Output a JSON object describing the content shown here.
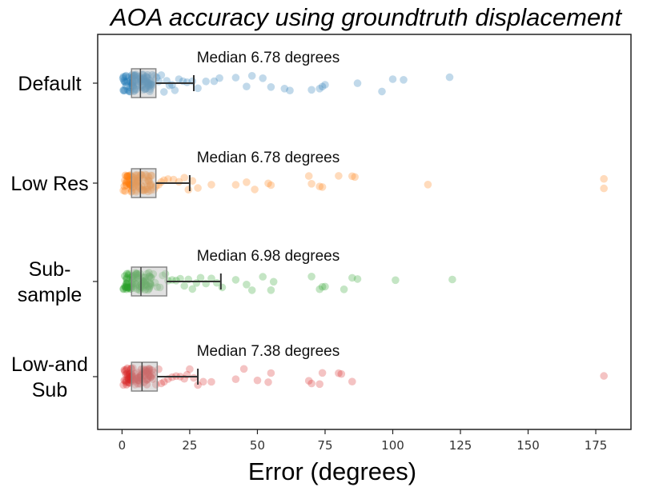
{
  "chart_data": {
    "type": "strip-box",
    "orientation": "horizontal",
    "title": "AOA accuracy using groundtruth displacement",
    "xlabel": "Error (degrees)",
    "xlim": [
      -9,
      188
    ],
    "xticks": [
      0,
      25,
      50,
      75,
      100,
      125,
      150,
      175
    ],
    "grid": false,
    "categories": [
      {
        "label_lines": [
          "Default"
        ],
        "color": "#1f77b4",
        "annotation": "Median 6.78 degrees",
        "box": {
          "q1": 3.5,
          "median": 6.78,
          "q3": 12.5,
          "whisker_low": 0,
          "whisker_high": 26.5
        },
        "points": [
          0.5,
          1,
          1.5,
          2,
          2.2,
          2.6,
          3,
          3.3,
          3.7,
          4,
          4.3,
          4.7,
          5,
          5.3,
          5.6,
          6,
          6.3,
          6.6,
          6.9,
          7.2,
          7.5,
          7.8,
          8.1,
          8.5,
          8.9,
          9.3,
          9.8,
          10.2,
          10.8,
          11.3,
          12,
          12.8,
          13.5,
          14.5,
          15.5,
          16.5,
          17.5,
          18.5,
          19.5,
          21,
          22.5,
          24,
          26,
          28,
          31,
          34,
          36,
          42,
          46,
          48,
          52,
          55,
          60,
          62,
          70,
          73,
          74,
          75,
          87,
          96,
          100,
          104,
          121
        ]
      },
      {
        "label_lines": [
          "Low Res"
        ],
        "color": "#ff7f0e",
        "annotation": "Median 6.78 degrees",
        "box": {
          "q1": 3.5,
          "median": 6.78,
          "q3": 12.5,
          "whisker_low": 0,
          "whisker_high": 25
        },
        "points": [
          0.5,
          1,
          1.5,
          2,
          2.4,
          2.8,
          3.2,
          3.6,
          4,
          4.4,
          4.8,
          5.2,
          5.6,
          6,
          6.4,
          6.8,
          7.2,
          7.6,
          8,
          8.5,
          9,
          9.5,
          10,
          10.6,
          11.2,
          11.8,
          12.5,
          13.5,
          14.5,
          15.5,
          17,
          19,
          21,
          23,
          24.5,
          26,
          28,
          33,
          42,
          46,
          49,
          54,
          55,
          69,
          70,
          73,
          74,
          80,
          85,
          86,
          113,
          178,
          178
        ]
      },
      {
        "label_lines": [
          "Sub-",
          "sample"
        ],
        "color": "#2ca02c",
        "annotation": "Median 6.98 degrees",
        "box": {
          "q1": 3.5,
          "median": 6.98,
          "q3": 16.5,
          "whisker_low": 0,
          "whisker_high": 36.5
        },
        "points": [
          0.5,
          1,
          1.5,
          2,
          2.5,
          3,
          3.4,
          3.8,
          4.2,
          4.6,
          5,
          5.4,
          5.8,
          6.2,
          6.6,
          7,
          7.4,
          7.8,
          8.2,
          8.7,
          9.2,
          9.7,
          10.2,
          10.8,
          11.5,
          12.2,
          13,
          14,
          15,
          16,
          17,
          18.5,
          20,
          21.5,
          23,
          24.5,
          26,
          27.5,
          29,
          31,
          33,
          35,
          37,
          42,
          46,
          48,
          52,
          55,
          56,
          70,
          73,
          74,
          75,
          82,
          85,
          87,
          101,
          122
        ]
      },
      {
        "label_lines": [
          "Low-and",
          "Sub"
        ],
        "color": "#d62728",
        "annotation": "Median 7.38 degrees",
        "box": {
          "q1": 3.5,
          "median": 7.38,
          "q3": 13,
          "whisker_low": 0,
          "whisker_high": 28
        },
        "points": [
          0.5,
          1,
          1.5,
          2,
          2.4,
          2.8,
          3.2,
          3.6,
          4,
          4.4,
          4.8,
          5.2,
          5.6,
          6,
          6.4,
          6.8,
          7.2,
          7.6,
          8,
          8.5,
          9,
          9.5,
          10,
          10.6,
          11.2,
          11.8,
          12.5,
          13.5,
          14.5,
          15.5,
          17,
          18.5,
          20,
          21.5,
          23,
          24,
          25,
          26.5,
          28,
          30,
          33,
          42,
          45,
          50,
          54,
          55,
          69,
          70,
          73,
          74,
          80,
          81,
          85,
          178
        ]
      }
    ]
  }
}
